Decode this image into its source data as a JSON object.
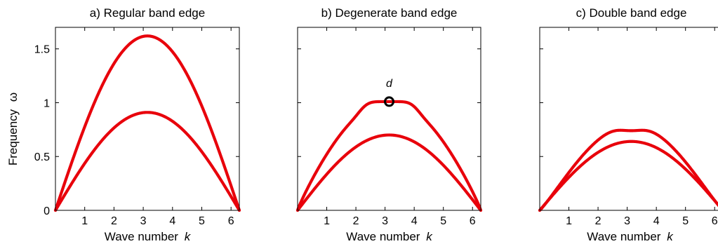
{
  "figure": {
    "ylabel": "Frequency",
    "ylabel_symbol": "ω"
  },
  "chart_data": [
    {
      "type": "line",
      "title": "a) Regular band edge",
      "xlabel": "Wave number",
      "xlabel_symbol": "k",
      "ylabel": "Frequency ω",
      "xlim": [
        0,
        6.2832
      ],
      "ylim": [
        0,
        1.7
      ],
      "xticks": [
        "1",
        "2",
        "3",
        "4",
        "5",
        "6"
      ],
      "xtick_values": [
        1,
        2,
        3,
        4,
        5,
        6
      ],
      "yticks": [
        "0",
        "0.5",
        "1",
        "1.5"
      ],
      "ytick_values": [
        0,
        0.5,
        1,
        1.5
      ],
      "series": [
        {
          "shape": "sine",
          "peak": 1.62,
          "color": "#e8000b"
        },
        {
          "shape": "sine",
          "peak": 0.91,
          "color": "#e8000b"
        }
      ],
      "annotations": []
    },
    {
      "type": "line",
      "title": "b) Degenerate band edge",
      "xlabel": "Wave number",
      "xlabel_symbol": "k",
      "xlim": [
        0,
        6.2832
      ],
      "ylim": [
        0,
        1.7
      ],
      "xticks": [
        "1",
        "2",
        "3",
        "4",
        "5",
        "6"
      ],
      "xtick_values": [
        1,
        2,
        3,
        4,
        5,
        6
      ],
      "yticks": [],
      "ytick_values": [
        0,
        0.5,
        1,
        1.5
      ],
      "series": [
        {
          "shape": "flat-top",
          "peak": 1.01,
          "color": "#e8000b"
        },
        {
          "shape": "sine",
          "peak": 0.7,
          "color": "#e8000b"
        }
      ],
      "annotations": [
        {
          "label": "d",
          "x": 3.1416,
          "y": 1.01,
          "marker": "circle"
        }
      ]
    },
    {
      "type": "line",
      "title": "c) Double band edge",
      "xlabel": "Wave number",
      "xlabel_symbol": "k",
      "xlim": [
        0,
        6.2832
      ],
      "ylim": [
        0,
        1.7
      ],
      "xticks": [
        "1",
        "2",
        "3",
        "4",
        "5",
        "6"
      ],
      "xtick_values": [
        1,
        2,
        3,
        4,
        5,
        6
      ],
      "yticks": [],
      "ytick_values": [
        0,
        0.5,
        1,
        1.5
      ],
      "series": [
        {
          "shape": "double-hump",
          "peak": 0.79,
          "center": 0.74,
          "color": "#e8000b"
        },
        {
          "shape": "sine",
          "peak": 0.64,
          "color": "#e8000b"
        }
      ],
      "annotations": []
    }
  ]
}
